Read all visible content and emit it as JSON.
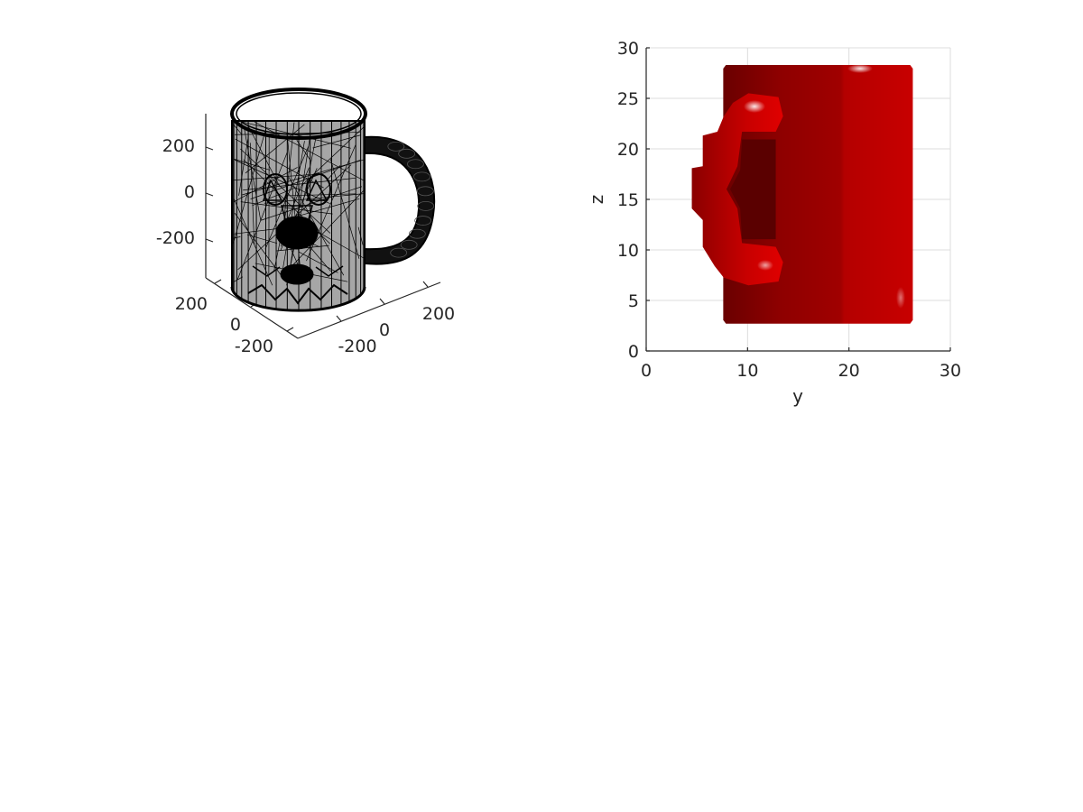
{
  "chart_data": [
    {
      "type": "3d-mesh",
      "title": "",
      "xlabel": "",
      "ylabel": "",
      "zlabel": "",
      "x_ticks": [
        "-200",
        "0",
        "200"
      ],
      "y_ticks": [
        "-200",
        "0",
        "200"
      ],
      "z_ticks": [
        "-200",
        "0",
        "200"
      ],
      "xlim": [
        -300,
        300
      ],
      "ylim": [
        -300,
        300
      ],
      "zlim": [
        -300,
        300
      ],
      "grid": false,
      "colors": {
        "face": "#a6a6a6",
        "edge": "#000000"
      }
    },
    {
      "type": "3d-voxel-surface",
      "title": "",
      "xlabel": "y",
      "ylabel": "z",
      "x_ticks": [
        "0",
        "10",
        "20",
        "30"
      ],
      "y_ticks": [
        "0",
        "5",
        "10",
        "15",
        "20",
        "25",
        "30"
      ],
      "xlim": [
        0,
        30
      ],
      "ylim": [
        0,
        30
      ],
      "grid": true,
      "body_extent": {
        "y": [
          7.6,
          26.3
        ],
        "z": [
          2.7,
          28.3
        ]
      },
      "handle_extent": {
        "y": [
          4.5,
          13.5
        ],
        "z": [
          6.5,
          25.5
        ]
      },
      "colors": {
        "surface": "#c00000",
        "shadow": "#6a0000",
        "highlight": "#ffffff"
      }
    }
  ]
}
